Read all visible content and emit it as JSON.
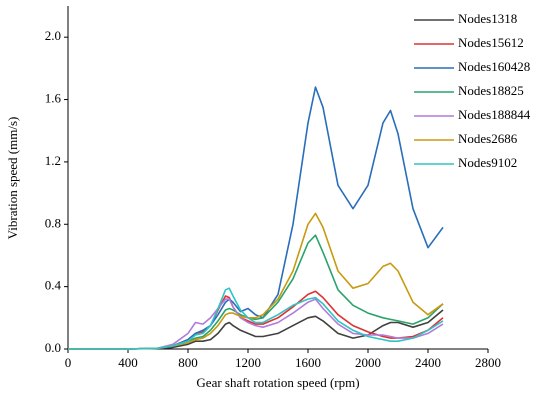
{
  "chart_data": {
    "type": "line",
    "x_label": "Gear shaft rotation speed (rpm)",
    "y_label": "Vibration speed (mm/s)",
    "x": [
      0,
      200,
      400,
      600,
      700,
      800,
      850,
      900,
      950,
      1000,
      1050,
      1075,
      1100,
      1150,
      1200,
      1250,
      1300,
      1400,
      1500,
      1600,
      1650,
      1700,
      1800,
      1900,
      2000,
      2100,
      2150,
      2200,
      2300,
      2400,
      2500
    ],
    "series": [
      {
        "name": "Nodes1318",
        "color": "#404040",
        "values": [
          0,
          0,
          0,
          0.003,
          0.01,
          0.03,
          0.05,
          0.05,
          0.06,
          0.1,
          0.16,
          0.17,
          0.15,
          0.12,
          0.1,
          0.08,
          0.08,
          0.1,
          0.15,
          0.2,
          0.21,
          0.18,
          0.1,
          0.07,
          0.09,
          0.15,
          0.17,
          0.17,
          0.14,
          0.17,
          0.25
        ]
      },
      {
        "name": "Nodes15612",
        "color": "#e03232",
        "values": [
          0,
          0,
          0,
          0.005,
          0.02,
          0.06,
          0.1,
          0.11,
          0.15,
          0.25,
          0.34,
          0.33,
          0.27,
          0.2,
          0.18,
          0.16,
          0.16,
          0.2,
          0.27,
          0.35,
          0.37,
          0.33,
          0.22,
          0.15,
          0.11,
          0.08,
          0.07,
          0.07,
          0.08,
          0.12,
          0.2
        ]
      },
      {
        "name": "Nodes160428",
        "color": "#2a6ebb",
        "values": [
          0,
          0,
          0,
          0.005,
          0.02,
          0.06,
          0.1,
          0.12,
          0.15,
          0.22,
          0.3,
          0.32,
          0.3,
          0.24,
          0.26,
          0.22,
          0.2,
          0.35,
          0.8,
          1.45,
          1.68,
          1.55,
          1.05,
          0.9,
          1.05,
          1.45,
          1.53,
          1.38,
          0.9,
          0.65,
          0.78
        ]
      },
      {
        "name": "Nodes18825",
        "color": "#2aa36b",
        "values": [
          0,
          0,
          0,
          0.005,
          0.02,
          0.05,
          0.07,
          0.08,
          0.12,
          0.18,
          0.25,
          0.26,
          0.25,
          0.22,
          0.2,
          0.19,
          0.2,
          0.3,
          0.45,
          0.68,
          0.73,
          0.62,
          0.38,
          0.28,
          0.23,
          0.2,
          0.19,
          0.18,
          0.16,
          0.2,
          0.29
        ]
      },
      {
        "name": "Nodes188844",
        "color": "#b07cd8",
        "values": [
          0,
          0,
          0,
          0.005,
          0.03,
          0.1,
          0.17,
          0.16,
          0.2,
          0.26,
          0.32,
          0.32,
          0.27,
          0.2,
          0.17,
          0.15,
          0.14,
          0.17,
          0.23,
          0.3,
          0.32,
          0.26,
          0.16,
          0.1,
          0.09,
          0.09,
          0.08,
          0.07,
          0.07,
          0.1,
          0.16
        ]
      },
      {
        "name": "Nodes2686",
        "color": "#c89a10",
        "values": [
          0,
          0,
          0,
          0.005,
          0.02,
          0.04,
          0.06,
          0.07,
          0.1,
          0.15,
          0.22,
          0.23,
          0.23,
          0.21,
          0.2,
          0.2,
          0.22,
          0.32,
          0.5,
          0.8,
          0.87,
          0.78,
          0.5,
          0.39,
          0.42,
          0.53,
          0.55,
          0.5,
          0.3,
          0.22,
          0.29
        ]
      },
      {
        "name": "Nodes9102",
        "color": "#2ec4c4",
        "values": [
          0,
          0,
          0,
          0.005,
          0.02,
          0.05,
          0.09,
          0.1,
          0.15,
          0.26,
          0.38,
          0.39,
          0.34,
          0.25,
          0.2,
          0.17,
          0.17,
          0.22,
          0.28,
          0.32,
          0.33,
          0.29,
          0.18,
          0.12,
          0.08,
          0.06,
          0.05,
          0.05,
          0.07,
          0.12,
          0.18
        ]
      }
    ],
    "xlim": [
      0,
      2800
    ],
    "xticks": [
      0,
      400,
      800,
      1200,
      1600,
      2000,
      2400,
      2800
    ],
    "ylim": [
      0,
      2.2
    ],
    "yticks": [
      {
        "value": 0,
        "label": "0.0"
      },
      0.4,
      0.8,
      1.2,
      1.6,
      {
        "value": 2,
        "label": "2.0"
      }
    ],
    "legend": "top-right"
  }
}
